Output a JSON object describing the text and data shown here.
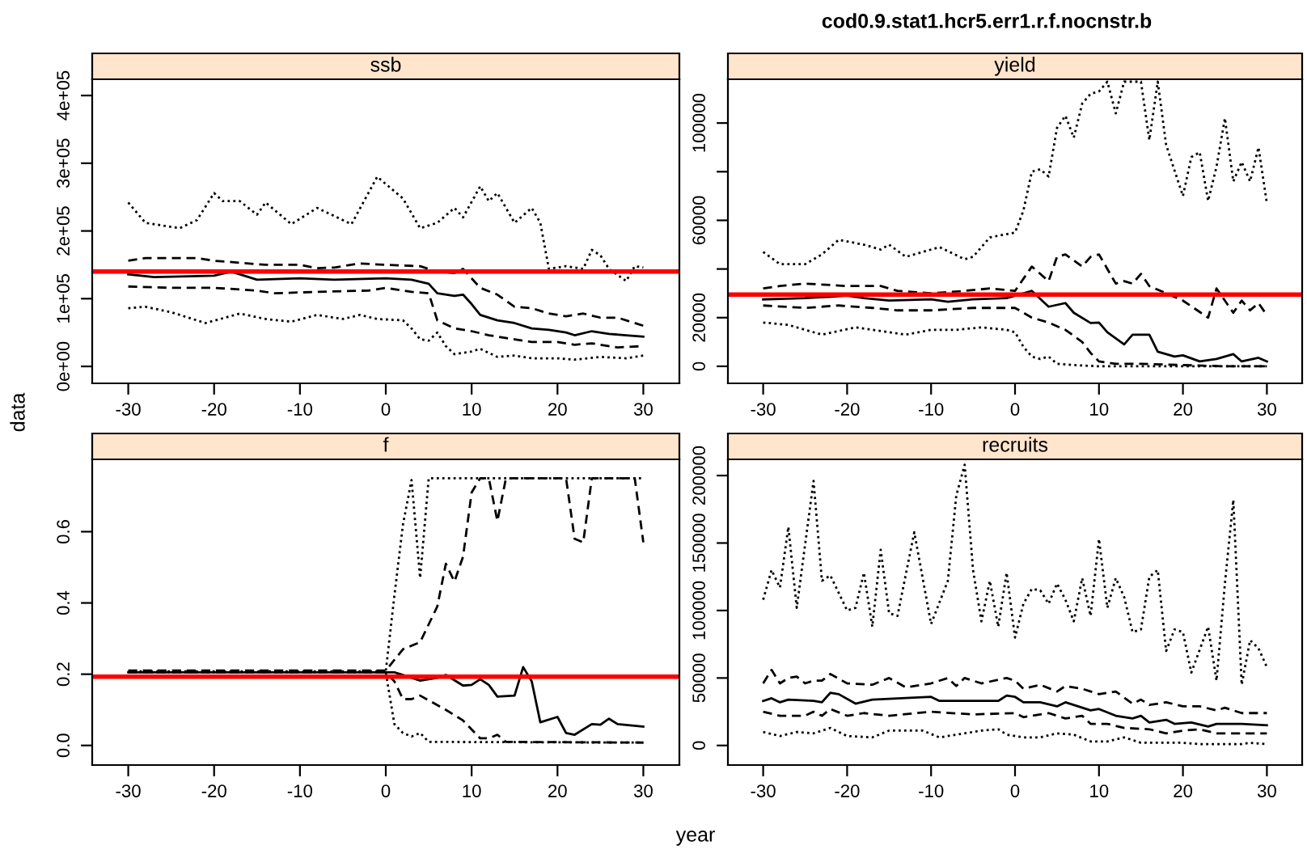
{
  "chart_data": [
    {
      "type": "line",
      "title": "ssb",
      "ylabel": "data",
      "xlim": [
        -34.2,
        34.2
      ],
      "xticks": [
        -30,
        -20,
        -10,
        0,
        10,
        20,
        30
      ],
      "ylim": [
        -25000,
        424000
      ],
      "yticks": [
        {
          "value": 0,
          "label": "0e+00"
        },
        {
          "value": 100000,
          "label": "1e+05"
        },
        {
          "value": 200000,
          "label": "2e+05"
        },
        {
          "value": 300000,
          "label": "3e+05"
        },
        {
          "value": 400000,
          "label": "4e+05"
        }
      ],
      "grid": false,
      "legend": false,
      "ref_lines": [
        {
          "axis": "y",
          "value": 140000,
          "color": "#ff0000"
        }
      ],
      "series": [
        {
          "line_style": "dotted",
          "color": "#000000",
          "x": [
            -30,
            -28,
            -24,
            -22,
            -20,
            -19,
            -17,
            -15,
            -14,
            -11,
            -8,
            -4,
            -1,
            2,
            4,
            6,
            8,
            9,
            11,
            12,
            13,
            15,
            17,
            18,
            19,
            21,
            23,
            24,
            25,
            26,
            28,
            29,
            30
          ],
          "values": [
            242000,
            212000,
            204000,
            216000,
            256000,
            244000,
            244000,
            224000,
            242000,
            210000,
            234000,
            210000,
            280000,
            248000,
            204000,
            212000,
            234000,
            220000,
            266000,
            244000,
            256000,
            212000,
            234000,
            212000,
            144000,
            148000,
            144000,
            172000,
            164000,
            144000,
            126000,
            148000,
            146000
          ]
        },
        {
          "line_style": "dashed",
          "color": "#000000",
          "x": [
            -30,
            -28,
            -22,
            -20,
            -14,
            -10,
            -8,
            -6,
            -3,
            0,
            4,
            6,
            8,
            9,
            10,
            11,
            13,
            15,
            17,
            19,
            21,
            23,
            25,
            27,
            30
          ],
          "values": [
            156000,
            160000,
            160000,
            156000,
            150000,
            150000,
            145000,
            146000,
            152000,
            150000,
            148000,
            140000,
            138000,
            144000,
            130000,
            116000,
            106000,
            88000,
            86000,
            78000,
            74000,
            78000,
            72000,
            72000,
            60000
          ]
        },
        {
          "line_style": "solid",
          "color": "#000000",
          "x": [
            -30,
            -27,
            -20,
            -18,
            -15,
            -10,
            -6,
            0,
            3,
            5,
            6,
            8,
            9,
            10,
            11,
            13,
            15,
            17,
            19,
            21,
            22,
            24,
            26,
            28,
            30
          ],
          "values": [
            136000,
            132000,
            134000,
            140000,
            128000,
            130000,
            128000,
            130000,
            128000,
            122000,
            108000,
            104000,
            106000,
            92000,
            76000,
            68000,
            64000,
            56000,
            54000,
            50000,
            46000,
            52000,
            48000,
            46000,
            44000
          ]
        },
        {
          "line_style": "dashed",
          "color": "#000000",
          "x": [
            -30,
            -25,
            -20,
            -15,
            -13,
            -8,
            -2,
            0,
            3,
            5,
            6,
            8,
            10,
            12,
            15,
            17,
            20,
            22,
            24,
            27,
            30
          ],
          "values": [
            118000,
            116000,
            116000,
            112000,
            108000,
            110000,
            112000,
            116000,
            110000,
            108000,
            68000,
            56000,
            52000,
            46000,
            40000,
            36000,
            36000,
            32000,
            34000,
            28000,
            30000
          ]
        },
        {
          "line_style": "dotted",
          "color": "#000000",
          "x": [
            -30,
            -28,
            -25,
            -21,
            -17,
            -14,
            -11,
            -8,
            -5,
            -3,
            -1,
            2,
            3,
            4,
            5,
            6,
            7,
            8,
            10,
            11,
            13,
            15,
            17,
            20,
            22,
            25,
            28,
            30
          ],
          "values": [
            86000,
            88000,
            80000,
            64000,
            78000,
            70000,
            66000,
            76000,
            70000,
            76000,
            70000,
            68000,
            56000,
            40000,
            38000,
            50000,
            30000,
            18000,
            22000,
            26000,
            14000,
            16000,
            12000,
            12000,
            10000,
            14000,
            12000,
            16000
          ]
        }
      ]
    },
    {
      "type": "line",
      "title": "yield",
      "annotations": [
        "cod0.9.stat1.hcr5.err1.r.f.nocnstr.b"
      ],
      "xlim": [
        -34.2,
        34.2
      ],
      "xticks": [
        -30,
        -20,
        -10,
        0,
        10,
        20,
        30
      ],
      "ylim": [
        -7000,
        118000
      ],
      "yticks": [
        0,
        20000,
        {
          "value": 40000,
          "label": null
        },
        60000,
        {
          "value": 80000,
          "label": null
        },
        100000
      ],
      "grid": false,
      "legend": false,
      "ref_lines": [
        {
          "axis": "y",
          "value": 29500,
          "color": "#ff0000"
        }
      ],
      "series": [
        {
          "line_style": "dotted",
          "color": "#000000",
          "x": [
            -30,
            -28,
            -25,
            -23,
            -21,
            -18,
            -16,
            -15,
            -13,
            -9,
            -6,
            -5,
            -3,
            0,
            1,
            2,
            3,
            4,
            5,
            6,
            7,
            8,
            9,
            10,
            11,
            12,
            13,
            14,
            15,
            16,
            17,
            18,
            20,
            21,
            22,
            23,
            24,
            25,
            26,
            27,
            28,
            29,
            30
          ],
          "values": [
            47000,
            42000,
            42000,
            46000,
            52000,
            50000,
            48000,
            50000,
            45000,
            49000,
            44000,
            45000,
            53000,
            55000,
            64000,
            80000,
            81000,
            78000,
            98000,
            103000,
            94000,
            108000,
            112000,
            113000,
            117000,
            104000,
            117000,
            117000,
            117000,
            93000,
            117000,
            91000,
            70000,
            86000,
            88000,
            68000,
            82000,
            102000,
            76000,
            84000,
            76000,
            90000,
            67000
          ]
        },
        {
          "line_style": "dashed",
          "color": "#000000",
          "x": [
            -30,
            -28,
            -25,
            -20,
            -16,
            -14,
            -10,
            -6,
            -3,
            0,
            2,
            4,
            5,
            6,
            8,
            9,
            10,
            12,
            13,
            14,
            15,
            16,
            18,
            20,
            23,
            24,
            26,
            27,
            28,
            29,
            30
          ],
          "values": [
            32000,
            33000,
            34000,
            33000,
            33000,
            31000,
            30000,
            31000,
            32000,
            31000,
            41000,
            35000,
            45000,
            46000,
            41000,
            45000,
            46000,
            34000,
            35000,
            34000,
            38000,
            33000,
            30000,
            27000,
            20000,
            32000,
            22000,
            27000,
            23000,
            26000,
            21000
          ]
        },
        {
          "line_style": "solid",
          "color": "#000000",
          "x": [
            -30,
            -25,
            -20,
            -18,
            -15,
            -10,
            -8,
            -5,
            -1,
            0,
            2,
            4,
            6,
            7,
            9,
            10,
            11,
            13,
            14,
            16,
            17,
            19,
            20,
            22,
            24,
            26,
            27,
            29,
            30
          ],
          "values": [
            27500,
            28000,
            29000,
            28000,
            27000,
            27500,
            26500,
            27500,
            28000,
            29000,
            31000,
            24500,
            26000,
            22000,
            17800,
            18000,
            14000,
            9000,
            13000,
            13000,
            6000,
            4000,
            4500,
            2000,
            3000,
            5000,
            2000,
            3500,
            2000
          ]
        },
        {
          "line_style": "dashed",
          "color": "#000000",
          "x": [
            -30,
            -25,
            -21,
            -17,
            -14,
            -10,
            -5,
            0,
            2,
            4,
            6,
            8,
            9,
            10,
            12,
            15,
            20,
            25,
            30
          ],
          "values": [
            25000,
            24000,
            25000,
            24000,
            23000,
            23000,
            24000,
            24000,
            20000,
            18000,
            15000,
            10000,
            5500,
            2000,
            1000,
            1000,
            500,
            0,
            0
          ]
        },
        {
          "line_style": "dotted",
          "color": "#000000",
          "x": [
            -30,
            -27,
            -23,
            -19,
            -15,
            -13,
            -10,
            -7,
            -4,
            -1,
            0,
            1,
            2,
            3,
            4,
            5,
            7,
            10,
            20,
            30
          ],
          "values": [
            18000,
            17000,
            13000,
            16000,
            14000,
            13000,
            15000,
            15000,
            16000,
            15000,
            14000,
            8000,
            4000,
            3000,
            4000,
            1000,
            500,
            0,
            0,
            0
          ]
        }
      ]
    },
    {
      "type": "line",
      "title": "f",
      "xlim": [
        -34.2,
        34.2
      ],
      "xticks": [
        -30,
        -20,
        -10,
        0,
        10,
        20,
        30
      ],
      "ylim": [
        -0.055,
        0.803
      ],
      "yticks": [
        {
          "value": 0,
          "label": "0.0"
        },
        {
          "value": 0.2,
          "label": "0.2"
        },
        {
          "value": 0.4,
          "label": "0.4"
        },
        {
          "value": 0.6,
          "label": "0.6"
        }
      ],
      "grid": false,
      "legend": false,
      "ref_lines": [
        {
          "axis": "y",
          "value": 0.193,
          "color": "#ff0000"
        }
      ],
      "series": [
        {
          "line_style": "dotted",
          "color": "#000000",
          "x": [
            -30,
            0,
            1,
            2,
            3,
            4,
            5,
            30
          ],
          "values": [
            0.208,
            0.208,
            0.42,
            0.62,
            0.745,
            0.47,
            0.75,
            0.75
          ]
        },
        {
          "line_style": "dashed",
          "color": "#000000",
          "x": [
            -30,
            0,
            2,
            4,
            6,
            7,
            8,
            9,
            10,
            11,
            12,
            13,
            14,
            21,
            22,
            23,
            24,
            29,
            30
          ],
          "values": [
            0.21,
            0.21,
            0.27,
            0.29,
            0.39,
            0.51,
            0.46,
            0.53,
            0.71,
            0.75,
            0.75,
            0.63,
            0.75,
            0.75,
            0.58,
            0.57,
            0.75,
            0.75,
            0.57
          ]
        },
        {
          "line_style": "solid",
          "color": "#000000",
          "x": [
            -30,
            0,
            1,
            2,
            4,
            6,
            7,
            9,
            10,
            11,
            12,
            13,
            15,
            16,
            17,
            18,
            20,
            21,
            22,
            24,
            25,
            26,
            27,
            30
          ],
          "values": [
            0.205,
            0.205,
            0.205,
            0.198,
            0.182,
            0.19,
            0.198,
            0.168,
            0.17,
            0.186,
            0.17,
            0.137,
            0.14,
            0.22,
            0.18,
            0.065,
            0.08,
            0.035,
            0.03,
            0.06,
            0.058,
            0.075,
            0.06,
            0.053
          ]
        },
        {
          "line_style": "dashed",
          "color": "#000000",
          "x": [
            -30,
            0,
            1,
            2,
            3,
            4,
            7,
            9,
            11,
            12,
            13,
            14,
            30
          ],
          "values": [
            0.205,
            0.205,
            0.18,
            0.13,
            0.13,
            0.14,
            0.1,
            0.07,
            0.02,
            0.02,
            0.03,
            0.01,
            0.008
          ]
        },
        {
          "line_style": "dotted",
          "color": "#000000",
          "x": [
            -30,
            0,
            1,
            2,
            3,
            4,
            5,
            30
          ],
          "values": [
            0.205,
            0.205,
            0.06,
            0.035,
            0.025,
            0.035,
            0.01,
            0.008
          ]
        }
      ]
    },
    {
      "type": "line",
      "title": "recruits",
      "xlabel": "year",
      "xlim": [
        -34.2,
        34.2
      ],
      "xticks": [
        -30,
        -20,
        -10,
        0,
        10,
        20,
        30
      ],
      "ylim": [
        -14500,
        212000
      ],
      "yticks": [
        0,
        50000,
        100000,
        150000,
        200000
      ],
      "grid": false,
      "legend": false,
      "series": [
        {
          "line_style": "dotted",
          "color": "#000000",
          "x": [
            -30,
            -29,
            -28,
            -27,
            -26,
            -24,
            -23,
            -22,
            -20,
            -19,
            -18,
            -17,
            -16,
            -15,
            -14,
            -12,
            -10,
            -8,
            -7,
            -6,
            -5,
            -4,
            -3,
            -2,
            -1,
            0,
            1,
            2,
            3,
            4,
            5,
            6,
            7,
            8,
            9,
            10,
            11,
            12,
            13,
            14,
            15,
            16,
            17,
            18,
            19,
            20,
            21,
            23,
            24,
            25,
            26,
            27,
            28,
            29,
            30
          ],
          "values": [
            108000,
            130000,
            117000,
            162000,
            102000,
            196000,
            122000,
            126000,
            100000,
            102000,
            128000,
            88000,
            145000,
            98000,
            96000,
            158000,
            90000,
            122000,
            185000,
            208000,
            130000,
            92000,
            122000,
            88000,
            128000,
            80000,
            105000,
            116000,
            115000,
            105000,
            120000,
            108000,
            92000,
            124000,
            96000,
            153000,
            102000,
            124000,
            110000,
            84000,
            86000,
            125000,
            130000,
            70000,
            86000,
            84000,
            54000,
            88000,
            48000,
            120000,
            182000,
            45000,
            78000,
            72000,
            58000
          ]
        },
        {
          "line_style": "dashed",
          "color": "#000000",
          "x": [
            -30,
            -29,
            -28,
            -27,
            -26,
            -25,
            -24,
            -23,
            -22,
            -20,
            -17,
            -15,
            -13,
            -10,
            -8,
            -7,
            -6,
            -4,
            -1,
            0,
            1,
            3,
            5,
            6,
            8,
            10,
            12,
            14,
            15,
            16,
            18,
            20,
            22,
            24,
            25,
            27,
            30
          ],
          "values": [
            46000,
            56000,
            46000,
            50000,
            51000,
            46000,
            48000,
            48000,
            53000,
            46000,
            45000,
            50000,
            43000,
            46000,
            50000,
            44000,
            50000,
            46000,
            50000,
            48000,
            42000,
            45000,
            40000,
            44000,
            42000,
            38000,
            40000,
            31000,
            34000,
            30000,
            32000,
            29000,
            29000,
            26000,
            28000,
            24000,
            24000
          ]
        },
        {
          "line_style": "solid",
          "color": "#000000",
          "x": [
            -30,
            -29,
            -28,
            -27,
            -24,
            -23,
            -22,
            -21,
            -19,
            -17,
            -10,
            -9,
            -2,
            -1,
            0,
            1,
            3,
            5,
            6,
            9,
            10,
            12,
            14,
            15,
            16,
            18,
            19,
            21,
            23,
            24,
            27,
            30
          ],
          "values": [
            33000,
            35000,
            32000,
            34000,
            33000,
            32000,
            39000,
            38000,
            31000,
            34000,
            36000,
            33000,
            33000,
            37000,
            36000,
            32000,
            32000,
            29000,
            32000,
            26000,
            27000,
            22000,
            20000,
            22000,
            17000,
            19000,
            16000,
            17000,
            14000,
            16000,
            16000,
            15000
          ]
        },
        {
          "line_style": "dashed",
          "color": "#000000",
          "x": [
            -30,
            -28,
            -25,
            -24,
            -23,
            -22,
            -20,
            -18,
            -15,
            -10,
            -5,
            0,
            1,
            4,
            6,
            8,
            9,
            11,
            13,
            16,
            18,
            20,
            22,
            24,
            27,
            30
          ],
          "values": [
            25000,
            22000,
            22000,
            25000,
            22000,
            27000,
            22000,
            24000,
            22000,
            25000,
            23000,
            24000,
            21000,
            24000,
            20000,
            22000,
            16000,
            16000,
            13000,
            12000,
            9000,
            11000,
            12000,
            9000,
            9000,
            9000
          ]
        },
        {
          "line_style": "dotted",
          "color": "#000000",
          "x": [
            -30,
            -28,
            -26,
            -24,
            -22,
            -20,
            -17,
            -15,
            -11,
            -9,
            -4,
            -2,
            -1,
            1,
            3,
            5,
            7,
            9,
            11,
            13,
            15,
            20,
            22,
            25,
            27,
            28,
            30
          ],
          "values": [
            10000,
            7000,
            10000,
            9000,
            13000,
            7000,
            6000,
            11000,
            11000,
            6000,
            11000,
            12000,
            8000,
            6000,
            6000,
            9000,
            8000,
            3000,
            3000,
            6000,
            2000,
            2000,
            1000,
            1000,
            1000,
            2000,
            1000
          ]
        }
      ]
    }
  ]
}
